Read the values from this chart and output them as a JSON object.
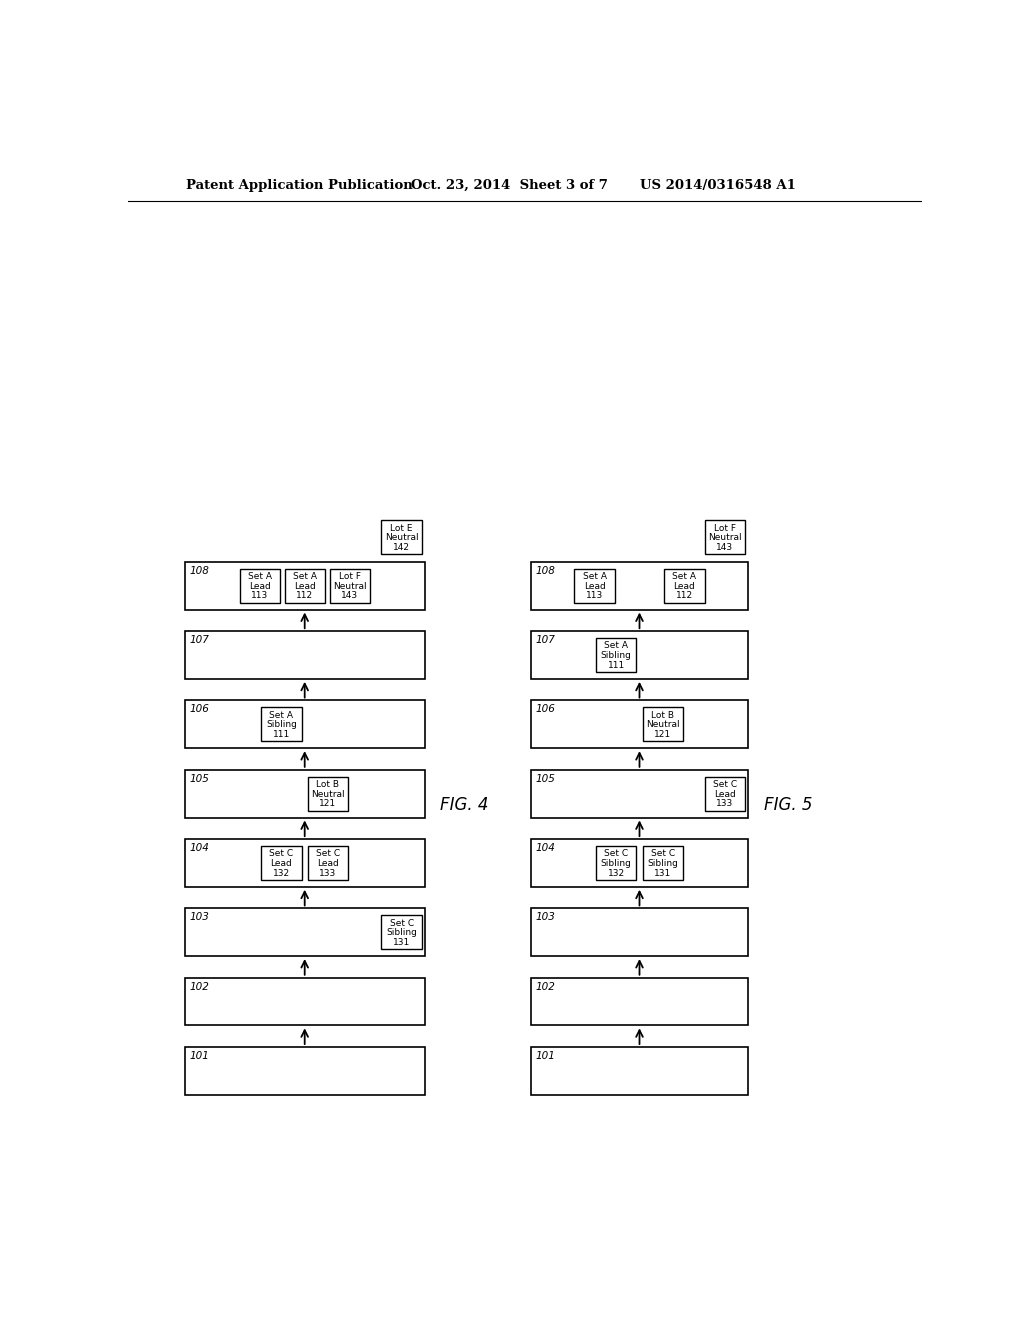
{
  "header_left": "Patent Application Publication",
  "header_mid": "Oct. 23, 2014  Sheet 3 of 7",
  "header_right": "US 2014/0316548 A1",
  "fig4_label": "FIG. 4",
  "fig5_label": "FIG. 5",
  "bg_color": "#ffffff",
  "fig4": {
    "steps": [
      {
        "id": "101",
        "sub_boxes": []
      },
      {
        "id": "102",
        "sub_boxes": []
      },
      {
        "id": "103",
        "sub_boxes": [
          {
            "lines": [
              "Set C",
              "Sibling",
              "131"
            ],
            "align": "right"
          }
        ]
      },
      {
        "id": "104",
        "sub_boxes": [
          {
            "lines": [
              "Set C",
              "Lead",
              "132"
            ],
            "align": "center_left"
          },
          {
            "lines": [
              "Set C",
              "Lead",
              "133"
            ],
            "align": "center_right"
          }
        ]
      },
      {
        "id": "105",
        "sub_boxes": [
          {
            "lines": [
              "Lot B",
              "Neutral",
              "121"
            ],
            "align": "center_right"
          }
        ]
      },
      {
        "id": "106",
        "sub_boxes": [
          {
            "lines": [
              "Set A",
              "Sibling",
              "111"
            ],
            "align": "center_left"
          }
        ]
      },
      {
        "id": "107",
        "sub_boxes": []
      },
      {
        "id": "108",
        "sub_boxes": [
          {
            "lines": [
              "Set A",
              "Lead",
              "113"
            ],
            "align": "left_group"
          },
          {
            "lines": [
              "Set A",
              "Lead",
              "112"
            ],
            "align": "mid_group"
          },
          {
            "lines": [
              "Lot F",
              "Neutral",
              "143"
            ],
            "align": "right_group"
          }
        ]
      }
    ],
    "extra_box": {
      "lines": [
        "Lot E",
        "Neutral",
        "142"
      ],
      "step_idx": 7
    }
  },
  "fig5": {
    "steps": [
      {
        "id": "101",
        "sub_boxes": []
      },
      {
        "id": "102",
        "sub_boxes": []
      },
      {
        "id": "103",
        "sub_boxes": []
      },
      {
        "id": "104",
        "sub_boxes": [
          {
            "lines": [
              "Set C",
              "Sibling",
              "132"
            ],
            "align": "center_left"
          },
          {
            "lines": [
              "Set C",
              "Sibling",
              "131"
            ],
            "align": "center_right"
          }
        ]
      },
      {
        "id": "105",
        "sub_boxes": [
          {
            "lines": [
              "Set C",
              "Lead",
              "133"
            ],
            "align": "right"
          }
        ]
      },
      {
        "id": "106",
        "sub_boxes": [
          {
            "lines": [
              "Lot B",
              "Neutral",
              "121"
            ],
            "align": "center_right"
          }
        ]
      },
      {
        "id": "107",
        "sub_boxes": [
          {
            "lines": [
              "Set A",
              "Sibling",
              "111"
            ],
            "align": "center_left"
          }
        ]
      },
      {
        "id": "108",
        "sub_boxes": [
          {
            "lines": [
              "Set A",
              "Lead",
              "113"
            ],
            "align": "left_group"
          },
          {
            "lines": [
              "Set A",
              "Lead",
              "112"
            ],
            "align": "right_group"
          }
        ]
      }
    ],
    "extra_box": {
      "lines": [
        "Lot F",
        "Neutral",
        "143"
      ],
      "step_idx": 7
    }
  }
}
